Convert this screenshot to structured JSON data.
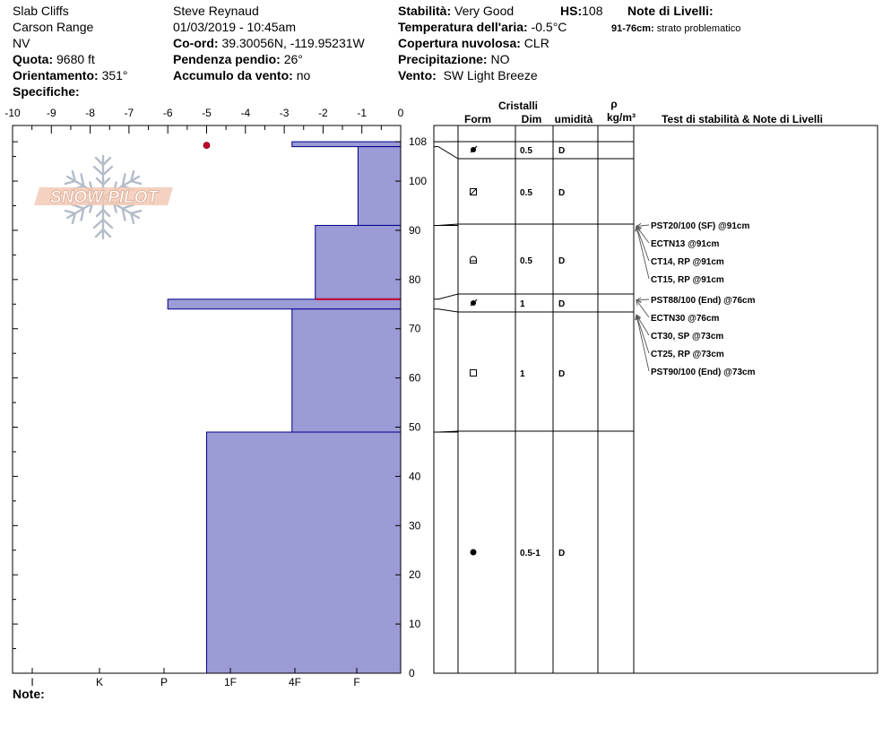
{
  "header": {
    "location": "Slab Cliffs",
    "range": "Carson Range",
    "state": "NV",
    "elevation_label": "Quota:",
    "elevation_value": "9680 ft",
    "aspect_label": "Orientamento:",
    "aspect_value": "351°",
    "specifics_label": "Specifiche:",
    "observer": "Steve Reynaud",
    "datetime": "01/03/2019 - 10:45am",
    "coord_label": "Co-ord:",
    "coord_value": "39.30056N, -119.95231W",
    "slope_label": "Pendenza pendio:",
    "slope_value": "26°",
    "wind_load_label": "Accumulo da vento:",
    "wind_load_value": "no",
    "stability_label": "Stabilità:",
    "stability_value": "Very Good",
    "hs_label": "HS:",
    "hs_value": "108",
    "air_temp_label": "Temperatura dell'aria:",
    "air_temp_value": "-0.5°C",
    "cloud_label": "Copertura nuvolosa:",
    "cloud_value": "CLR",
    "precip_label": "Precipitazione:",
    "precip_value": "NO",
    "wind_label": "Vento:",
    "wind_value": "SW Light Breeze",
    "layer_notes_label": "Note di Livelli:",
    "layer_note_range": "91-76cm:",
    "layer_note_text": "strato problematico"
  },
  "footer": {
    "notes_label": "Note:"
  },
  "logo": {
    "text": "SNOW PILOT",
    "icon": "snowflake-icon"
  },
  "colors": {
    "fill": "#9b9bd6",
    "edge": "#00008b",
    "weak_layer": "#c0002a",
    "temp_point": "#c0002a"
  },
  "table": {
    "header_crystals": "Cristalli",
    "header_form": "Form",
    "header_size": "Dim",
    "header_moisture": "umidità",
    "header_rho": "ρ",
    "header_density": "kg/m³",
    "header_tests": "Test di stabilità & Note di Livelli"
  },
  "chart_data": {
    "type": "snow-profile",
    "temp_axis": {
      "ticks": [
        -10,
        -9,
        -8,
        -7,
        -6,
        -5,
        -4,
        -3,
        -2,
        -1,
        0
      ],
      "range": [
        -10,
        0
      ]
    },
    "depth_axis": {
      "ticks": [
        0,
        10,
        20,
        30,
        40,
        50,
        60,
        70,
        80,
        90,
        100,
        108
      ],
      "range": [
        0,
        111.3
      ]
    },
    "hardness_labels": [
      "I",
      "K",
      "P",
      "1F",
      "4F",
      "F"
    ],
    "hardness_layers": [
      {
        "bottom": 107,
        "top": 108,
        "temp_extent": -2.8
      },
      {
        "bottom": 91,
        "top": 107,
        "temp_extent": -1.1
      },
      {
        "bottom": 76,
        "top": 91,
        "temp_extent": -2.2
      },
      {
        "bottom": 74,
        "top": 76,
        "temp_extent": -6.0
      },
      {
        "bottom": 49,
        "top": 74,
        "temp_extent": -2.8
      },
      {
        "bottom": 0,
        "top": 49,
        "temp_extent": -5.0
      }
    ],
    "weak_layer_depth": 76,
    "temperature_points": [
      {
        "depth": 108,
        "temp": -5
      }
    ],
    "crystal_layers": [
      {
        "top": 108,
        "bottom": 105,
        "form": "precip-particles",
        "size": "0.5",
        "moisture": "D"
      },
      {
        "top": 105,
        "bottom": 91,
        "form": "decomposing",
        "size": "0.5",
        "moisture": "D"
      },
      {
        "top": 91,
        "bottom": 77,
        "form": "faceted-rounded",
        "size": "0.5",
        "moisture": "D"
      },
      {
        "top": 77,
        "bottom": 74,
        "form": "precip-particles",
        "size": "1",
        "moisture": "D"
      },
      {
        "top": 74,
        "bottom": 49,
        "form": "faceted",
        "size": "1",
        "moisture": "D"
      },
      {
        "top": 49,
        "bottom": 0,
        "form": "rounded",
        "size": "0.5-1",
        "moisture": "D"
      }
    ],
    "crystal_form_glyphs": {
      "precip-particles": "pp",
      "decomposing": "df",
      "faceted-rounded": "fcxr",
      "faceted": "fc",
      "rounded": "rg"
    },
    "tests": [
      {
        "text": "PST20/100 (SF) @91cm",
        "depth": 91
      },
      {
        "text": "ECTN13 @91cm",
        "depth": 91
      },
      {
        "text": "CT14, RP @91cm",
        "depth": 91
      },
      {
        "text": "CT15, RP @91cm",
        "depth": 91
      },
      {
        "text": "PST88/100 (End) @76cm",
        "depth": 76
      },
      {
        "text": "ECTN30 @76cm",
        "depth": 76
      },
      {
        "text": "CT30, SP @73cm",
        "depth": 73
      },
      {
        "text": "CT25, RP @73cm",
        "depth": 73
      },
      {
        "text": "PST90/100 (End) @73cm",
        "depth": 73
      }
    ]
  }
}
